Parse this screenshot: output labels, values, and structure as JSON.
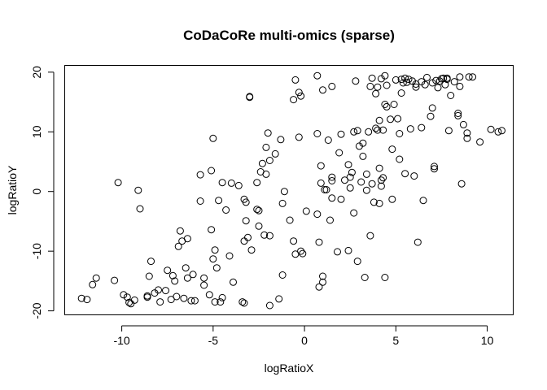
{
  "chart_data": {
    "type": "scatter",
    "title": "CoDaCoRe multi-omics (sparse)",
    "xlabel": "logRatioX",
    "ylabel": "logRatioY",
    "xlim": [
      -13.1,
      11.4
    ],
    "ylim": [
      -20.6,
      21.2
    ],
    "xticks": [
      -10,
      -5,
      0,
      5,
      10
    ],
    "yticks": [
      -20,
      -10,
      0,
      10,
      20
    ],
    "grid": false,
    "points": [
      [
        -12.2,
        -17.9
      ],
      [
        -11.9,
        -18.1
      ],
      [
        -11.6,
        -15.6
      ],
      [
        -11.4,
        -14.5
      ],
      [
        -10.4,
        -14.9
      ],
      [
        -10.2,
        1.5
      ],
      [
        -9.9,
        -17.3
      ],
      [
        -9.7,
        -17.7
      ],
      [
        -9.6,
        -18.6
      ],
      [
        -9.5,
        -18.8
      ],
      [
        -9.3,
        -18.2
      ],
      [
        -9.1,
        0.2
      ],
      [
        -9.0,
        -2.9
      ],
      [
        -8.6,
        -17.5
      ],
      [
        -8.6,
        -17.7
      ],
      [
        -8.5,
        -14.2
      ],
      [
        -8.4,
        -11.7
      ],
      [
        -8.2,
        -17.0
      ],
      [
        -8.0,
        -16.5
      ],
      [
        -7.9,
        -18.5
      ],
      [
        -7.6,
        -16.6
      ],
      [
        -7.5,
        -13.2
      ],
      [
        -7.3,
        -18.1
      ],
      [
        -7.2,
        -14.1
      ],
      [
        -7.1,
        -15.0
      ],
      [
        -7.0,
        -17.6
      ],
      [
        -6.9,
        -9.2
      ],
      [
        -6.8,
        -6.6
      ],
      [
        -6.7,
        -8.3
      ],
      [
        -6.6,
        -17.9
      ],
      [
        -6.5,
        -12.8
      ],
      [
        -6.4,
        -7.9
      ],
      [
        -6.4,
        -14.5
      ],
      [
        -6.2,
        -18.3
      ],
      [
        -6.1,
        -13.9
      ],
      [
        -6.0,
        -18.3
      ],
      [
        -5.7,
        2.8
      ],
      [
        -5.7,
        -1.6
      ],
      [
        -5.5,
        -14.5
      ],
      [
        -5.5,
        -15.7
      ],
      [
        -5.2,
        -17.3
      ],
      [
        -5.1,
        3.5
      ],
      [
        -5.1,
        -6.4
      ],
      [
        -5.0,
        8.9
      ],
      [
        -5.0,
        -11.3
      ],
      [
        -4.9,
        -9.8
      ],
      [
        -4.9,
        -18.5
      ],
      [
        -4.8,
        -12.8
      ],
      [
        -4.7,
        -1.5
      ],
      [
        -4.6,
        -18.5
      ],
      [
        -4.5,
        -17.8
      ],
      [
        -4.5,
        1.5
      ],
      [
        -4.3,
        -3.1
      ],
      [
        -4.1,
        -10.8
      ],
      [
        -4.0,
        1.4
      ],
      [
        -3.9,
        -15.2
      ],
      [
        -3.6,
        1.0
      ],
      [
        -3.4,
        -18.5
      ],
      [
        -3.3,
        -18.7
      ],
      [
        -3.3,
        -1.3
      ],
      [
        -3.3,
        -8.3
      ],
      [
        -3.2,
        -1.8
      ],
      [
        -3.2,
        -4.9
      ],
      [
        -3.1,
        -7.7
      ],
      [
        -3.0,
        15.9
      ],
      [
        -3.0,
        15.8
      ],
      [
        -2.9,
        -9.8
      ],
      [
        -2.6,
        1.5
      ],
      [
        -2.6,
        -3.0
      ],
      [
        -2.5,
        -3.2
      ],
      [
        -2.5,
        -5.8
      ],
      [
        -2.4,
        3.3
      ],
      [
        -2.3,
        4.7
      ],
      [
        -2.2,
        -7.3
      ],
      [
        -2.1,
        2.9
      ],
      [
        -2.1,
        7.4
      ],
      [
        -2.0,
        9.8
      ],
      [
        -1.9,
        -19.1
      ],
      [
        -1.9,
        5.2
      ],
      [
        -1.9,
        -7.4
      ],
      [
        -1.6,
        6.3
      ],
      [
        -1.4,
        -18.0
      ],
      [
        -1.3,
        8.7
      ],
      [
        -1.2,
        -2.0
      ],
      [
        -1.2,
        -14.0
      ],
      [
        -1.1,
        0.0
      ],
      [
        -0.8,
        -4.8
      ],
      [
        -0.6,
        15.4
      ],
      [
        -0.6,
        -8.3
      ],
      [
        -0.5,
        18.7
      ],
      [
        -0.5,
        -10.5
      ],
      [
        -0.3,
        16.6
      ],
      [
        -0.3,
        9.1
      ],
      [
        -0.2,
        16.0
      ],
      [
        -0.2,
        -10.0
      ],
      [
        -0.1,
        -10.4
      ],
      [
        0.1,
        -3.3
      ],
      [
        0.7,
        -3.8
      ],
      [
        0.7,
        9.7
      ],
      [
        0.7,
        19.4
      ],
      [
        0.8,
        -16.0
      ],
      [
        0.8,
        -8.5
      ],
      [
        0.9,
        4.3
      ],
      [
        0.9,
        1.4
      ],
      [
        1.0,
        -15.2
      ],
      [
        1.0,
        -14.2
      ],
      [
        1.0,
        17.0
      ],
      [
        1.1,
        0.3
      ],
      [
        1.2,
        0.3
      ],
      [
        1.3,
        8.6
      ],
      [
        1.4,
        -4.8
      ],
      [
        1.5,
        17.6
      ],
      [
        1.5,
        1.8
      ],
      [
        1.5,
        -1.1
      ],
      [
        1.5,
        2.4
      ],
      [
        1.8,
        -10.1
      ],
      [
        1.9,
        6.5
      ],
      [
        2.0,
        9.6
      ],
      [
        2.0,
        -1.3
      ],
      [
        2.2,
        1.9
      ],
      [
        2.4,
        -9.9
      ],
      [
        2.4,
        4.5
      ],
      [
        2.5,
        2.4
      ],
      [
        2.5,
        0.6
      ],
      [
        2.6,
        3.2
      ],
      [
        2.7,
        -3.6
      ],
      [
        2.7,
        10.0
      ],
      [
        2.8,
        18.5
      ],
      [
        2.9,
        -11.7
      ],
      [
        2.9,
        10.2
      ],
      [
        3.0,
        7.6
      ],
      [
        3.1,
        1.6
      ],
      [
        3.2,
        5.9
      ],
      [
        3.2,
        8.1
      ],
      [
        3.3,
        -14.4
      ],
      [
        3.4,
        2.9
      ],
      [
        3.4,
        0.2
      ],
      [
        3.5,
        10.0
      ],
      [
        3.6,
        -7.4
      ],
      [
        3.6,
        17.6
      ],
      [
        3.7,
        19.0
      ],
      [
        3.7,
        1.3
      ],
      [
        3.8,
        -1.8
      ],
      [
        3.9,
        16.4
      ],
      [
        3.9,
        10.6
      ],
      [
        4.0,
        10.3
      ],
      [
        4.0,
        17.5
      ],
      [
        4.1,
        11.9
      ],
      [
        4.1,
        -2.0
      ],
      [
        4.1,
        3.9
      ],
      [
        4.2,
        1.9
      ],
      [
        4.2,
        0.9
      ],
      [
        4.2,
        18.9
      ],
      [
        4.3,
        10.3
      ],
      [
        4.3,
        2.3
      ],
      [
        4.4,
        -14.4
      ],
      [
        4.4,
        14.6
      ],
      [
        4.4,
        19.4
      ],
      [
        4.5,
        17.8
      ],
      [
        4.5,
        14.2
      ],
      [
        4.7,
        12.1
      ],
      [
        4.8,
        -1.3
      ],
      [
        4.8,
        7.1
      ],
      [
        4.9,
        14.6
      ],
      [
        5.0,
        18.7
      ],
      [
        5.1,
        12.2
      ],
      [
        5.2,
        9.7
      ],
      [
        5.2,
        5.4
      ],
      [
        5.3,
        18.8
      ],
      [
        5.3,
        16.5
      ],
      [
        5.4,
        18.2
      ],
      [
        5.5,
        19.0
      ],
      [
        5.5,
        3.0
      ],
      [
        5.6,
        18.3
      ],
      [
        5.7,
        18.8
      ],
      [
        5.8,
        10.5
      ],
      [
        5.9,
        18.5
      ],
      [
        6.0,
        2.6
      ],
      [
        6.1,
        18.0
      ],
      [
        6.1,
        17.5
      ],
      [
        6.2,
        -8.5
      ],
      [
        6.4,
        10.7
      ],
      [
        6.4,
        18.4
      ],
      [
        6.5,
        -1.5
      ],
      [
        6.6,
        17.9
      ],
      [
        6.7,
        19.1
      ],
      [
        6.9,
        12.6
      ],
      [
        7.0,
        18.2
      ],
      [
        7.0,
        14.0
      ],
      [
        7.1,
        4.2
      ],
      [
        7.1,
        3.8
      ],
      [
        7.2,
        18.6
      ],
      [
        7.3,
        17.4
      ],
      [
        7.4,
        18.5
      ],
      [
        7.5,
        18.9
      ],
      [
        7.6,
        19.0
      ],
      [
        7.7,
        17.9
      ],
      [
        7.8,
        18.8
      ],
      [
        7.8,
        19.0
      ],
      [
        7.9,
        10.2
      ],
      [
        8.0,
        16.1
      ],
      [
        8.2,
        18.4
      ],
      [
        8.4,
        13.1
      ],
      [
        8.4,
        12.7
      ],
      [
        8.5,
        17.6
      ],
      [
        8.5,
        19.2
      ],
      [
        8.6,
        1.3
      ],
      [
        8.7,
        11.2
      ],
      [
        8.9,
        9.8
      ],
      [
        8.9,
        8.9
      ],
      [
        9.0,
        19.2
      ],
      [
        9.2,
        19.2
      ],
      [
        9.6,
        8.3
      ],
      [
        10.2,
        10.4
      ],
      [
        10.6,
        10.0
      ],
      [
        10.8,
        10.2
      ]
    ]
  }
}
